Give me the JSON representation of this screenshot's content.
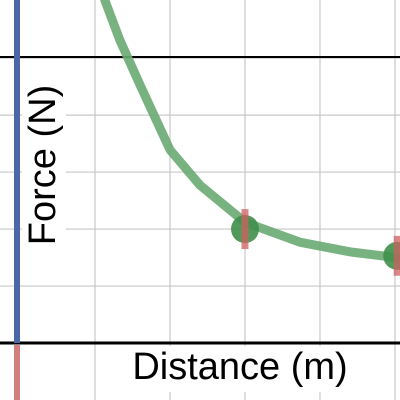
{
  "chart_data": {
    "type": "scatter",
    "x_label": "Distance (m)",
    "y_label": "Force (N)",
    "xlim": [
      -0.267,
      5.067
    ],
    "ylim": [
      -1,
      6.02
    ],
    "xticks": [
      1,
      2,
      3,
      4,
      5
    ],
    "yticks": [
      1,
      2,
      3,
      4,
      5
    ],
    "grid": true,
    "curve": {
      "color": "#6aaa73",
      "x": [
        1.13,
        1.33,
        1.6,
        2,
        2.4,
        3,
        3.73,
        4.4,
        5.07
      ],
      "values": [
        6.02,
        5.32,
        4.53,
        3.39,
        2.77,
        2.12,
        1.77,
        1.6,
        1.49
      ]
    },
    "series": [
      {
        "color": "#3f8f4a",
        "error_color": "#d06060",
        "x": [
          3,
          5.03
        ],
        "values": [
          2,
          1.53
        ],
        "errors": [
          0.35,
          0.35
        ]
      }
    ]
  }
}
